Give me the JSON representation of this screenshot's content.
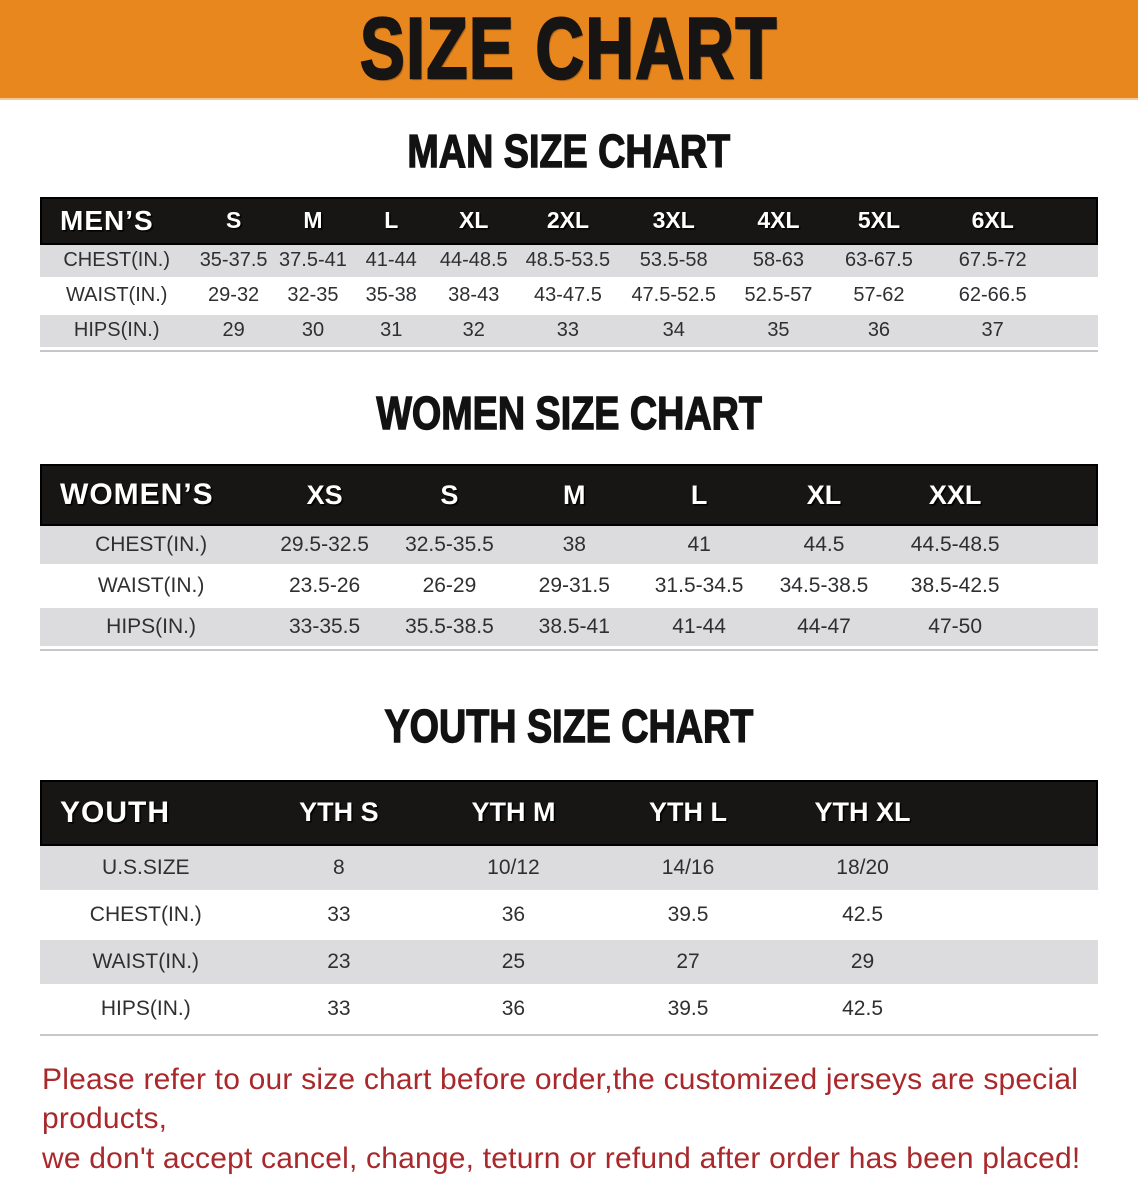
{
  "banner": {
    "title": "SIZE CHART",
    "background_color": "#E9871F",
    "text_color": "#161514"
  },
  "colors": {
    "header_bar": "#171615",
    "stripe_gray": "#dcdcde",
    "notice_red": "#A9282B"
  },
  "sections": [
    {
      "title": "MAN SIZE CHART",
      "table": {
        "header": [
          "MEN’S",
          "S",
          "M",
          "L",
          "XL",
          "2XL",
          "3XL",
          "4XL",
          "5XL",
          "6XL"
        ],
        "rows": [
          [
            "CHEST(IN.)",
            "35-37.5",
            "37.5-41",
            "41-44",
            "44-48.5",
            "48.5-53.5",
            "53.5-58",
            "58-63",
            "63-67.5",
            "67.5-72"
          ],
          [
            "WAIST(IN.)",
            "29-32",
            "32-35",
            "35-38",
            "38-43",
            "43-47.5",
            "47.5-52.5",
            "52.5-57",
            "57-62",
            "62-66.5"
          ],
          [
            "HIPS(IN.)",
            "29",
            "30",
            "31",
            "32",
            "33",
            "34",
            "35",
            "36",
            "37"
          ]
        ]
      }
    },
    {
      "title": "WOMEN SIZE CHART",
      "table": {
        "header": [
          "WOMEN’S",
          "XS",
          "S",
          "M",
          "L",
          "XL",
          "XXL"
        ],
        "rows": [
          [
            "CHEST(IN.)",
            "29.5-32.5",
            "32.5-35.5",
            "38",
            "41",
            "44.5",
            "44.5-48.5"
          ],
          [
            "WAIST(IN.)",
            "23.5-26",
            "26-29",
            "29-31.5",
            "31.5-34.5",
            "34.5-38.5",
            "38.5-42.5"
          ],
          [
            "HIPS(IN.)",
            "33-35.5",
            "35.5-38.5",
            "38.5-41",
            "41-44",
            "44-47",
            "47-50"
          ]
        ]
      }
    },
    {
      "title": "YOUTH SIZE CHART",
      "table": {
        "header": [
          "YOUTH",
          "YTH S",
          "YTH M",
          "YTH L",
          "YTH XL"
        ],
        "rows": [
          [
            "U.S.SIZE",
            "8",
            "10/12",
            "14/16",
            "18/20"
          ],
          [
            "CHEST(IN.)",
            "33",
            "36",
            "39.5",
            "42.5"
          ],
          [
            "WAIST(IN.)",
            "23",
            "25",
            "27",
            "29"
          ],
          [
            "HIPS(IN.)",
            "33",
            "36",
            "39.5",
            "42.5"
          ]
        ]
      }
    }
  ],
  "footer": {
    "line1": "Please refer to our size chart before order,the customized jerseys are special products,",
    "line2": "we don't accept cancel, change, teturn or refund after order has been placed!"
  }
}
